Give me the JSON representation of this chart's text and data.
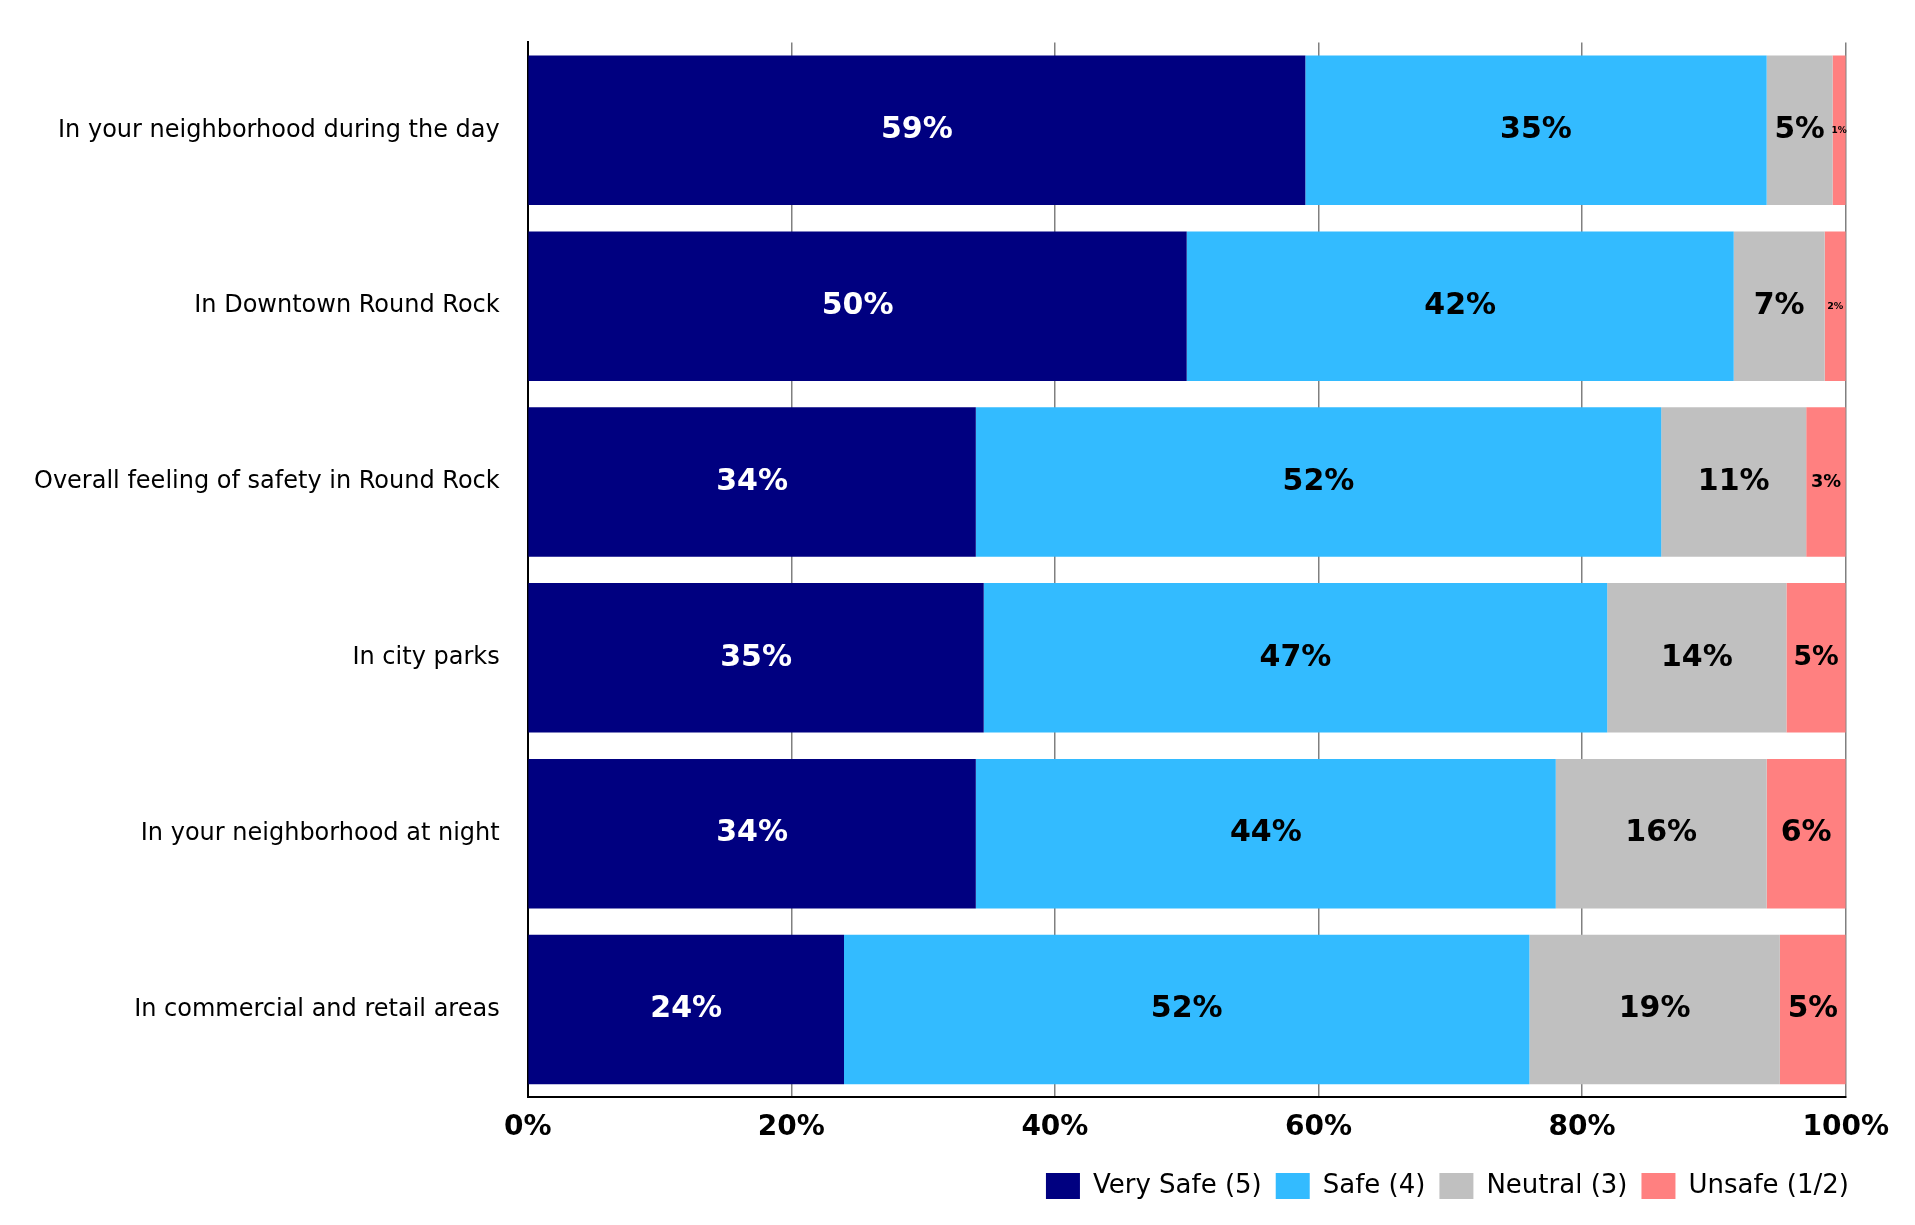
{
  "chart_data": {
    "type": "bar",
    "orientation": "horizontal",
    "stacked": true,
    "categories": [
      "In your neighborhood during the day",
      "In Downtown Round Rock",
      "Overall feeling of safety in Round Rock",
      "In city parks",
      "In your neighborhood at night",
      "In commercial and retail areas"
    ],
    "series": [
      {
        "name": "Very Safe (5)",
        "color": "#000080",
        "values": [
          59,
          50,
          34,
          34.6,
          34,
          24
        ],
        "value_labels": [
          "59%",
          "50%",
          "34%",
          "35%",
          "34%",
          "24%"
        ]
      },
      {
        "name": "Safe (4)",
        "color": "#33bbff",
        "values": [
          35,
          41.5,
          52,
          47.3,
          44,
          52
        ],
        "value_labels": [
          "35%",
          "42%",
          "52%",
          "47%",
          "44%",
          "52%"
        ]
      },
      {
        "name": "Neutral (3)",
        "color": "#c0c0c0",
        "values": [
          5,
          6.9,
          11,
          13.6,
          16,
          19
        ],
        "value_labels": [
          "5%",
          "7%",
          "11%",
          "14%",
          "16%",
          "19%"
        ]
      },
      {
        "name": "Unsafe (1/2)",
        "color": "#ff8080",
        "values": [
          1,
          1.6,
          3,
          4.5,
          6,
          5
        ],
        "value_labels": [
          "1%",
          "2%",
          "3%",
          "5%",
          "6%",
          "5%"
        ]
      }
    ],
    "xlim": [
      0,
      100
    ],
    "xticks": [
      {
        "value": 0,
        "label": "0%"
      },
      {
        "value": 20,
        "label": "20%"
      },
      {
        "value": 40,
        "label": "40%"
      },
      {
        "value": 60,
        "label": "60%"
      },
      {
        "value": 80,
        "label": "80%"
      },
      {
        "value": 100,
        "label": "100%"
      }
    ],
    "grid": "x",
    "legend": "bottom right"
  }
}
